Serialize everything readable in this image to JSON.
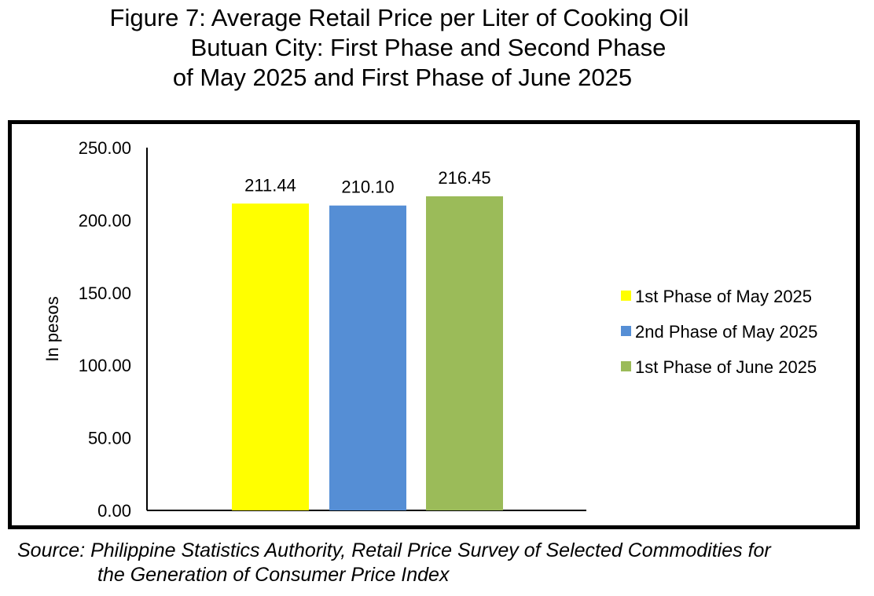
{
  "title_lines": [
    "Figure 7: Average Retail Price per Liter of Cooking Oil",
    "Butuan City: First Phase and Second Phase",
    "of May 2025 and First Phase of June 2025"
  ],
  "source_lines": [
    "Source: Philippine Statistics Authority, Retail Price Survey of Selected Commodities for",
    "the Generation of Consumer Price Index"
  ],
  "chart_data": {
    "type": "bar",
    "title": "Figure 7: Average Retail Price per Liter of Cooking Oil Butuan City: First Phase and Second Phase of May 2025 and First Phase of June 2025",
    "xlabel": "",
    "ylabel": "In pesos",
    "ylim": [
      0,
      250
    ],
    "yticks": [
      "0.00",
      "50.00",
      "100.00",
      "150.00",
      "200.00",
      "250.00"
    ],
    "grid": false,
    "legend_position": "right",
    "series": [
      {
        "name": "1st Phase of May 2025",
        "value": 211.44,
        "label": "211.44",
        "color": "#ffff00"
      },
      {
        "name": "2nd Phase of May 2025",
        "value": 210.1,
        "label": "210.10",
        "color": "#558ed5"
      },
      {
        "name": "1st Phase of June 2025",
        "value": 216.45,
        "label": "216.45",
        "color": "#9bbb59"
      }
    ]
  }
}
